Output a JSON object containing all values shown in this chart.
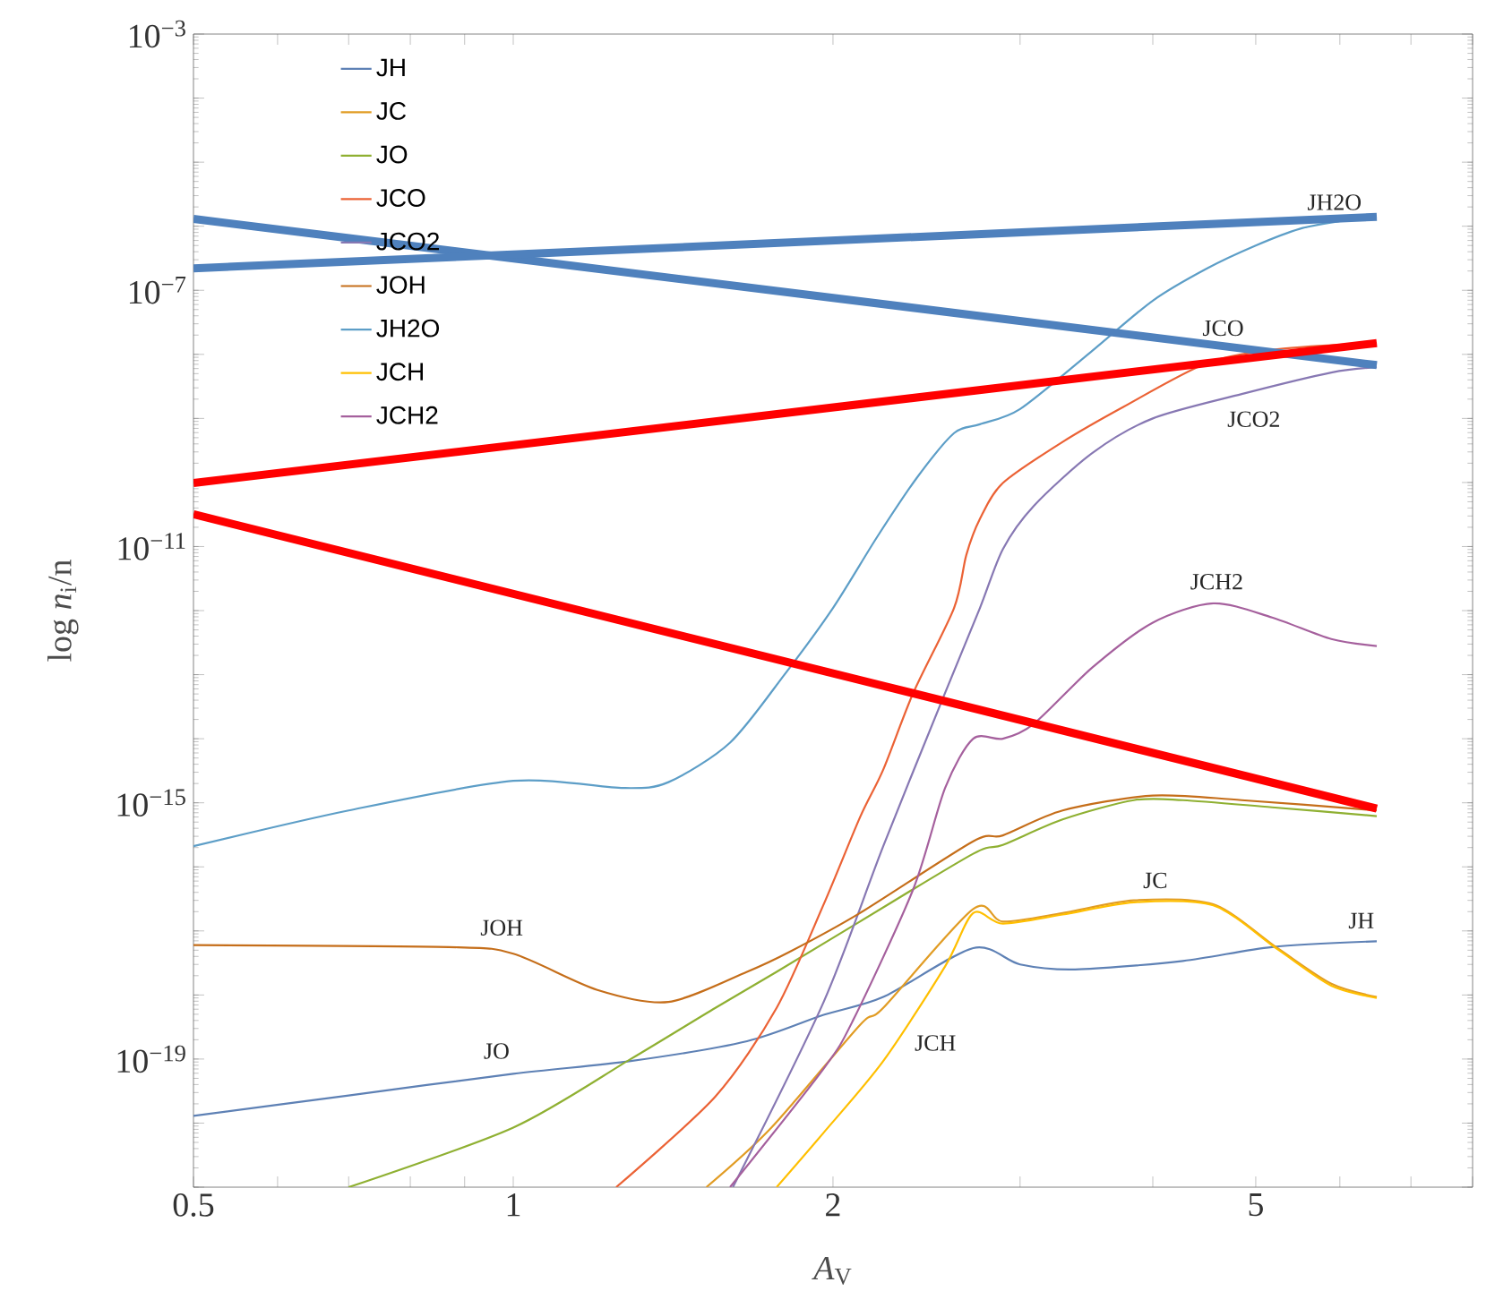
{
  "chart_data": {
    "type": "line",
    "xlabel": "*A*$_{V}$",
    "ylabel": "log *n*$_{i}$/n",
    "log": "xy",
    "legend": "top left",
    "xlim": [
      0.5,
      8
    ],
    "ylim": [
      1e-21,
      0.001
    ],
    "xticks": [
      0.5,
      {
        "value": 0.6,
        "label": null
      },
      {
        "value": 0.7,
        "label": null
      },
      {
        "value": 0.8,
        "label": null
      },
      {
        "value": 0.9,
        "label": null
      },
      1,
      2,
      {
        "value": 3,
        "label": null
      },
      {
        "value": 4,
        "label": null
      },
      5,
      {
        "value": 6,
        "label": null
      },
      {
        "value": 7,
        "label": null
      },
      {
        "value": 8,
        "label": null
      }
    ],
    "yticks": [
      {
        "value": 1e-21,
        "label": null
      },
      {
        "value": 1e-20,
        "label": null
      },
      {
        "value": 1e-19,
        "label": "10$^{−19}$"
      },
      {
        "value": 1e-18,
        "label": null
      },
      {
        "value": 1e-17,
        "label": null
      },
      {
        "value": 1e-16,
        "label": null
      },
      {
        "value": 1e-15,
        "label": "10$^{−15}$"
      },
      {
        "value": 1e-14,
        "label": null
      },
      {
        "value": 1e-13,
        "label": null
      },
      {
        "value": 1e-12,
        "label": null
      },
      {
        "value": 1e-11,
        "label": "10$^{−11}$"
      },
      {
        "value": 1e-10,
        "label": null
      },
      {
        "value": 1e-09,
        "label": null
      },
      {
        "value": 1e-08,
        "label": null
      },
      {
        "value": 1e-07,
        "label": "10$^{−7}$"
      },
      {
        "value": 1e-06,
        "label": null
      },
      {
        "value": 1e-05,
        "label": null
      },
      {
        "value": 0.0001,
        "label": null
      },
      {
        "value": 0.001,
        "label": "10$^{−3}$"
      }
    ],
    "series": [
      {
        "name": "JH",
        "color": "#5e81b5",
        "x": [
          0.5,
          0.7,
          1.0,
          1.29,
          1.66,
          1.96,
          2.23,
          2.71,
          3.0,
          3.38,
          4.27,
          5.18,
          6.5
        ],
        "values": [
          1.3e-20,
          2.7e-20,
          5.9e-20,
          9.3e-20,
          1.9e-19,
          4.9e-19,
          9.3e-19,
          5.4e-18,
          3e-18,
          2.5e-18,
          3.4e-18,
          5.6e-18,
          6.9e-18
        ]
      },
      {
        "name": "JC",
        "color": "#e19c24",
        "x": [
          1.52,
          1.75,
          2.12,
          2.23,
          2.71,
          2.89,
          3.29,
          3.84,
          4.56,
          5.24,
          5.89,
          6.5
        ],
        "values": [
          1e-21,
          8.5e-21,
          3.4e-19,
          6.3e-19,
          2.2e-17,
          1.4e-17,
          1.9e-17,
          3e-17,
          2.6e-17,
          5.4e-18,
          1.5e-18,
          9.3e-19
        ]
      },
      {
        "name": "JO",
        "color": "#8fb032",
        "x": [
          0.7,
          1.0,
          1.29,
          1.55,
          1.77,
          2.12,
          2.71,
          2.89,
          3.29,
          3.84,
          4.27,
          5.18,
          6.5
        ],
        "values": [
          1e-21,
          8.5e-21,
          1e-19,
          6.3e-19,
          2.3e-18,
          1.4e-17,
          1.6e-16,
          2.2e-16,
          5.5e-16,
          1.1e-15,
          1.1e-15,
          8.5e-16,
          6.2e-16
        ]
      },
      {
        "name": "JCO",
        "color": "#eb6235",
        "x": [
          1.25,
          1.55,
          1.77,
          1.96,
          2.12,
          2.23,
          2.38,
          2.6,
          2.67,
          2.75,
          2.89,
          3.29,
          3.75,
          4.49,
          5.24,
          6.5
        ],
        "values": [
          1e-21,
          2.6e-20,
          6.3e-19,
          2.6e-17,
          5.9e-16,
          3.3e-15,
          5.2e-14,
          1.1e-12,
          7.4e-12,
          2.7e-11,
          9.8e-11,
          4.3e-10,
          1.5e-09,
          7.2e-09,
          1.2e-08,
          1.5e-08
        ]
      },
      {
        "name": "JCO2",
        "color": "#8778b3",
        "x": [
          1.61,
          1.96,
          2.23,
          2.55,
          2.75,
          2.89,
          3.09,
          3.51,
          4.0,
          4.85,
          5.89,
          6.5
        ],
        "values": [
          1e-21,
          7.8e-19,
          2.1e-16,
          5.2e-14,
          1.1e-12,
          9.1e-12,
          4.3e-11,
          2.9e-10,
          1e-09,
          2.4e-09,
          5.2e-09,
          6.3e-09
        ]
      },
      {
        "name": "JOH",
        "color": "#c56e1a",
        "x": [
          0.5,
          0.87,
          1.0,
          1.2,
          1.4,
          1.66,
          1.82,
          2.12,
          2.71,
          2.89,
          3.29,
          4.0,
          4.85,
          6.5
        ],
        "values": [
          6e-18,
          5.6e-18,
          4.4e-18,
          1.2e-18,
          7.8e-19,
          2.3e-18,
          4.7e-18,
          1.9e-17,
          2.5e-16,
          3.1e-16,
          7.6e-16,
          1.3e-15,
          1.1e-15,
          7.6e-16
        ]
      },
      {
        "name": "JH2O",
        "color": "#5d9ec7",
        "x": [
          0.5,
          0.7,
          1.0,
          1.27,
          1.4,
          1.6,
          1.8,
          2.0,
          2.2,
          2.4,
          2.6,
          2.75,
          3.0,
          3.5,
          4.0,
          4.5,
          5.0,
          5.5,
          6.0,
          6.5
        ],
        "values": [
          2.1e-16,
          7.6e-16,
          2.2e-15,
          1.7e-15,
          2.1e-15,
          8.7e-15,
          1e-13,
          1.1e-12,
          1.4e-11,
          1.2e-10,
          5.9e-10,
          8.1e-10,
          1.4e-09,
          1.1e-08,
          6.9e-08,
          2.2e-07,
          5e-07,
          9.1e-07,
          1.2e-06,
          1.4e-06
        ]
      },
      {
        "name": "JCH",
        "color": "#ffbf00",
        "x": [
          1.77,
          1.96,
          2.23,
          2.55,
          2.71,
          2.89,
          3.29,
          3.84,
          4.56,
          5.24,
          5.89,
          6.5
        ],
        "values": [
          1e-21,
          7.1e-21,
          9.3e-20,
          2.8e-18,
          1.9e-17,
          1.3e-17,
          1.8e-17,
          2.8e-17,
          2.5e-17,
          5.2e-18,
          1.4e-18,
          9e-19
        ]
      },
      {
        "name": "JCH2",
        "color": "#a5609d",
        "x": [
          1.6,
          1.96,
          2.09,
          2.38,
          2.55,
          2.71,
          2.89,
          3.09,
          3.51,
          4.0,
          4.56,
          5.18,
          5.89,
          6.5
        ],
        "values": [
          1e-21,
          7.1e-20,
          4.1e-19,
          4.5e-17,
          1.7e-15,
          1e-14,
          1e-14,
          1.7e-14,
          1.3e-13,
          6.5e-13,
          1.3e-12,
          7.8e-13,
          3.6e-13,
          2.8e-13
        ]
      },
      {
        "color": "#4f81bd",
        "x": [
          0.5,
          6.5
        ],
        "values": [
          1.3e-06,
          6.8e-09
        ]
      },
      {
        "color": "#4f81bd",
        "x": [
          0.5,
          6.5
        ],
        "values": [
          2.2e-07,
          1.4e-06
        ]
      },
      {
        "color": "#ff0000",
        "x": [
          0.5,
          6.5
        ],
        "values": [
          9.8e-11,
          1.5e-08
        ]
      },
      {
        "color": "#ff0000",
        "x": [
          0.5,
          6.5
        ],
        "values": [
          3.2e-11,
          8.1e-16
        ]
      }
    ],
    "annotations": [
      "JH2O",
      "JCO",
      "JCO2",
      "JCH2",
      "JC",
      "JH",
      "JOH",
      "JO",
      "JCH"
    ]
  }
}
